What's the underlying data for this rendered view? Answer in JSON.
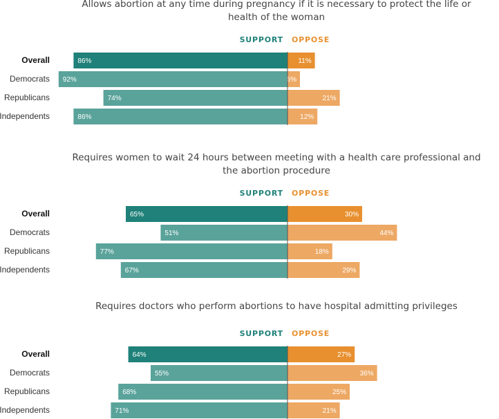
{
  "colors": {
    "support_overall": "#1f8179",
    "support": "#5aa39b",
    "oppose_overall": "#e8902f",
    "oppose": "#eda864",
    "support_legend": "#1f8179",
    "oppose_legend": "#e8902f",
    "divider": "#555555"
  },
  "chart_data": [
    {
      "type": "bar",
      "title_lines": [
        "Allows abortion at any time during pregnancy if it is necessary to protect the life or",
        "health of the woman"
      ],
      "legend": [
        "SUPPORT",
        "OPPOSE"
      ],
      "categories": [
        "Overall",
        "Democrats",
        "Republicans",
        "Independents"
      ],
      "series": [
        {
          "name": "SUPPORT",
          "values": [
            86,
            92,
            74,
            86
          ]
        },
        {
          "name": "OPPOSE",
          "values": [
            11,
            5,
            21,
            12
          ]
        }
      ]
    },
    {
      "type": "bar",
      "title_lines": [
        "Requires women to wait 24 hours between meeting with a health care professional and",
        "the abortion procedure"
      ],
      "legend": [
        "SUPPORT",
        "OPPOSE"
      ],
      "categories": [
        "Overall",
        "Democrats",
        "Republicans",
        "Independents"
      ],
      "series": [
        {
          "name": "SUPPORT",
          "values": [
            65,
            51,
            77,
            67
          ]
        },
        {
          "name": "OPPOSE",
          "values": [
            30,
            44,
            18,
            29
          ]
        }
      ]
    },
    {
      "type": "bar",
      "title_lines": [
        "Requires doctors who perform abortions to have hospital admitting privileges"
      ],
      "legend": [
        "SUPPORT",
        "OPPOSE"
      ],
      "categories": [
        "Overall",
        "Democrats",
        "Republicans",
        "Independents"
      ],
      "series": [
        {
          "name": "SUPPORT",
          "values": [
            64,
            55,
            68,
            71
          ]
        },
        {
          "name": "OPPOSE",
          "values": [
            27,
            36,
            25,
            21
          ]
        }
      ]
    }
  ]
}
